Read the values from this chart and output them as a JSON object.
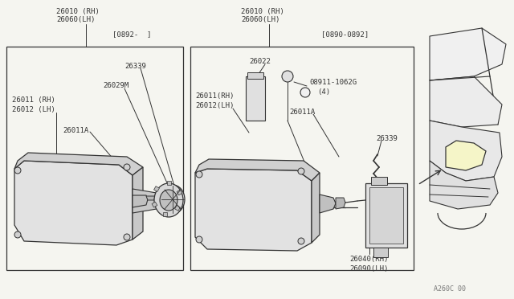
{
  "bg_color": "#f5f5f0",
  "line_color": "#555555",
  "text_color": "#333333",
  "lc_dark": "#333333",
  "footer_text": "A260C 00",
  "left_label1": "26010 (RH)",
  "left_label2": "26060(LH)",
  "left_date": "[0892-  ]",
  "right_label1": "26010 (RH)",
  "right_label2": "26060(LH)",
  "right_date": "[0890-0892]"
}
